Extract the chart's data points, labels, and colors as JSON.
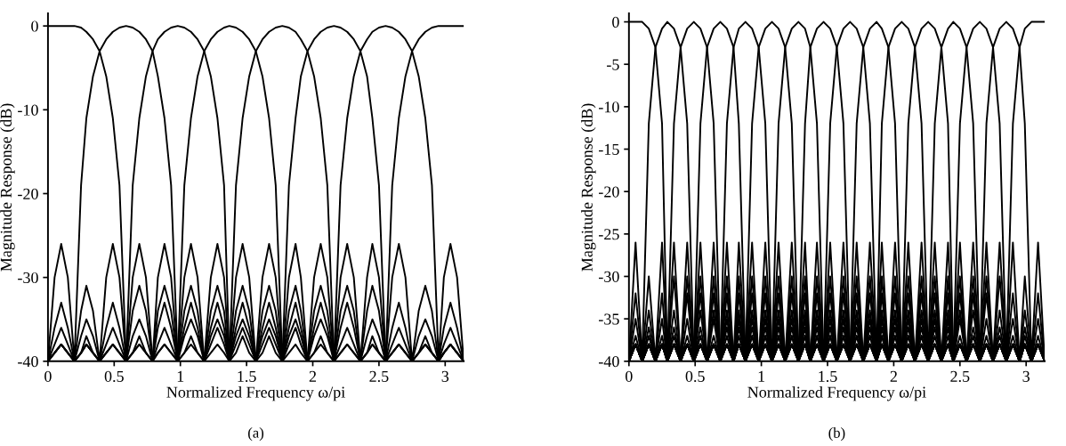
{
  "chart_data": [
    {
      "type": "line",
      "xlabel": "Normalized Frequency ω/pi",
      "ylabel": "Magnitude Response (dB)",
      "annotations": [
        "(a)"
      ],
      "xlim": [
        0,
        3.14
      ],
      "ylim": [
        -40,
        1.5
      ],
      "xticks": [
        0,
        0.5,
        1,
        1.5,
        2,
        2.5,
        3
      ],
      "yticks": [
        0,
        -10,
        -20,
        -30,
        -40
      ],
      "x": [
        0,
        0.05,
        0.1,
        0.15,
        0.2,
        0.25,
        0.29,
        0.34,
        0.39,
        0.44,
        0.49,
        0.54,
        0.59,
        0.64,
        0.69,
        0.74,
        0.79,
        0.83,
        0.88,
        0.93,
        0.98,
        1.03,
        1.08,
        1.13,
        1.18,
        1.23,
        1.28,
        1.33,
        1.37,
        1.42,
        1.47,
        1.52,
        1.57,
        1.62,
        1.67,
        1.72,
        1.77,
        1.82,
        1.87,
        1.91,
        1.96,
        2.01,
        2.06,
        2.11,
        2.16,
        2.21,
        2.26,
        2.31,
        2.36,
        2.41,
        2.45,
        2.5,
        2.55,
        2.6,
        2.65,
        2.7,
        2.75,
        2.8,
        2.85,
        2.9,
        2.95,
        2.99,
        3.04,
        3.09,
        3.14
      ],
      "series": [
        {
          "color": "#000000",
          "values": [
            0,
            0,
            0,
            0,
            0,
            -0.2,
            -0.7,
            -1.6,
            -3,
            -6,
            -11,
            -19,
            -40,
            -30,
            -26,
            -30,
            -40,
            -34,
            -31,
            -34,
            -40,
            -36,
            -33,
            -36,
            -40,
            -37,
            -35,
            -37,
            -40,
            -38,
            -36,
            -38,
            -40,
            -39,
            -37,
            -39,
            -40,
            -39,
            -38,
            -39,
            -40,
            -39,
            -38,
            -39,
            -40,
            -39,
            -38,
            -39,
            -40,
            -39,
            -38,
            -39,
            -40,
            -39,
            -38,
            -39,
            -40,
            -39,
            -38,
            -39,
            -40,
            -39,
            -38,
            -39,
            -40
          ]
        },
        {
          "color": "#000000",
          "values": [
            -40,
            -30,
            -26,
            -30,
            -40,
            -19,
            -11,
            -6,
            -3,
            -1.6,
            -0.7,
            -0.2,
            0,
            -0.2,
            -0.7,
            -1.6,
            -3,
            -6,
            -11,
            -19,
            -40,
            -30,
            -26,
            -30,
            -40,
            -34,
            -31,
            -34,
            -40,
            -36,
            -33,
            -36,
            -40,
            -37,
            -35,
            -37,
            -40,
            -38,
            -36,
            -38,
            -40,
            -39,
            -37,
            -39,
            -40,
            -39,
            -38,
            -39,
            -40,
            -39,
            -38,
            -39,
            -40,
            -39,
            -38,
            -39,
            -40,
            -39,
            -38,
            -39,
            -40,
            -39,
            -38,
            -39,
            -40
          ]
        },
        {
          "color": "#000000",
          "values": [
            -40,
            -36,
            -33,
            -36,
            -40,
            -34,
            -31,
            -34,
            -40,
            -30,
            -26,
            -30,
            -40,
            -19,
            -11,
            -6,
            -3,
            -1.6,
            -0.7,
            -0.2,
            0,
            -0.2,
            -0.7,
            -1.6,
            -3,
            -6,
            -11,
            -19,
            -40,
            -30,
            -26,
            -30,
            -40,
            -34,
            -31,
            -34,
            -40,
            -36,
            -33,
            -36,
            -40,
            -37,
            -35,
            -37,
            -40,
            -38,
            -36,
            -38,
            -40,
            -39,
            -37,
            -39,
            -40,
            -39,
            -38,
            -39,
            -40,
            -39,
            -38,
            -39,
            -40,
            -39,
            -38,
            -39,
            -40
          ]
        },
        {
          "color": "#000000",
          "values": [
            -40,
            -38,
            -36,
            -38,
            -40,
            -37,
            -35,
            -37,
            -40,
            -36,
            -33,
            -36,
            -40,
            -34,
            -31,
            -34,
            -40,
            -30,
            -26,
            -30,
            -40,
            -19,
            -11,
            -6,
            -3,
            -1.6,
            -0.7,
            -0.2,
            0,
            -0.2,
            -0.7,
            -1.6,
            -3,
            -6,
            -11,
            -19,
            -40,
            -30,
            -26,
            -30,
            -40,
            -34,
            -31,
            -34,
            -40,
            -36,
            -33,
            -36,
            -40,
            -37,
            -35,
            -37,
            -40,
            -38,
            -36,
            -38,
            -40,
            -39,
            -37,
            -39,
            -40,
            -39,
            -38,
            -39,
            -40
          ]
        },
        {
          "color": "#000000",
          "values": [
            -40,
            -39,
            -38,
            -39,
            -40,
            -39,
            -37,
            -39,
            -40,
            -38,
            -36,
            -38,
            -40,
            -37,
            -35,
            -37,
            -40,
            -36,
            -33,
            -36,
            -40,
            -34,
            -31,
            -34,
            -40,
            -30,
            -26,
            -30,
            -40,
            -19,
            -11,
            -6,
            -3,
            -1.6,
            -0.7,
            -0.2,
            0,
            -0.2,
            -0.7,
            -1.6,
            -3,
            -6,
            -11,
            -19,
            -40,
            -30,
            -26,
            -30,
            -40,
            -34,
            -31,
            -34,
            -40,
            -36,
            -33,
            -36,
            -40,
            -37,
            -35,
            -37,
            -40,
            -38,
            -36,
            -38,
            -40
          ]
        },
        {
          "color": "#000000",
          "values": [
            -40,
            -39,
            -38,
            -39,
            -40,
            -39,
            -38,
            -39,
            -40,
            -39,
            -38,
            -39,
            -40,
            -39,
            -37,
            -39,
            -40,
            -38,
            -36,
            -38,
            -40,
            -37,
            -35,
            -37,
            -40,
            -36,
            -33,
            -36,
            -40,
            -34,
            -31,
            -34,
            -40,
            -30,
            -26,
            -30,
            -40,
            -19,
            -11,
            -6,
            -3,
            -1.6,
            -0.7,
            -0.2,
            0,
            -0.2,
            -0.7,
            -1.6,
            -3,
            -6,
            -11,
            -19,
            -40,
            -30,
            -26,
            -30,
            -40,
            -34,
            -31,
            -34,
            -40,
            -36,
            -33,
            -36,
            -40
          ]
        },
        {
          "color": "#000000",
          "values": [
            -40,
            -39,
            -38,
            -39,
            -40,
            -39,
            -38,
            -39,
            -40,
            -39,
            -38,
            -39,
            -40,
            -39,
            -38,
            -39,
            -40,
            -39,
            -38,
            -39,
            -40,
            -39,
            -37,
            -39,
            -40,
            -38,
            -36,
            -38,
            -40,
            -37,
            -35,
            -37,
            -40,
            -36,
            -33,
            -36,
            -40,
            -34,
            -31,
            -34,
            -40,
            -30,
            -26,
            -30,
            -40,
            -19,
            -11,
            -6,
            -3,
            -1.6,
            -0.7,
            -0.2,
            0,
            -0.2,
            -0.7,
            -1.6,
            -3,
            -6,
            -11,
            -19,
            -40,
            -30,
            -26,
            -30,
            -40
          ]
        },
        {
          "color": "#000000",
          "values": [
            -40,
            -39,
            -38,
            -39,
            -40,
            -39,
            -38,
            -39,
            -40,
            -39,
            -38,
            -39,
            -40,
            -39,
            -38,
            -39,
            -40,
            -39,
            -38,
            -39,
            -40,
            -39,
            -38,
            -39,
            -40,
            -39,
            -38,
            -39,
            -40,
            -39,
            -37,
            -39,
            -40,
            -38,
            -36,
            -38,
            -40,
            -37,
            -35,
            -37,
            -40,
            -36,
            -33,
            -36,
            -40,
            -34,
            -31,
            -34,
            -40,
            -30,
            -26,
            -30,
            -40,
            -19,
            -11,
            -6,
            -3,
            -1.6,
            -0.7,
            -0.2,
            0,
            0,
            0,
            0,
            0
          ]
        }
      ]
    },
    {
      "type": "line",
      "xlabel": "Normalized Frequency ω/pi",
      "ylabel": "Magnitude Response (dB)",
      "annotations": [
        "(b)"
      ],
      "xlim": [
        0,
        3.14
      ],
      "ylim": [
        -40,
        1
      ],
      "xticks": [
        0,
        0.5,
        1,
        1.5,
        2,
        2.5,
        3
      ],
      "yticks": [
        0,
        -5,
        -10,
        -15,
        -20,
        -25,
        -30,
        -35,
        -40
      ],
      "x": [
        0,
        0.05,
        0.1,
        0.15,
        0.2,
        0.25,
        0.29,
        0.34,
        0.39,
        0.44,
        0.49,
        0.54,
        0.59,
        0.64,
        0.69,
        0.74,
        0.79,
        0.83,
        0.88,
        0.93,
        0.98,
        1.03,
        1.08,
        1.13,
        1.18,
        1.23,
        1.28,
        1.33,
        1.37,
        1.42,
        1.47,
        1.52,
        1.57,
        1.62,
        1.67,
        1.72,
        1.77,
        1.82,
        1.87,
        1.91,
        1.96,
        2.01,
        2.06,
        2.11,
        2.16,
        2.21,
        2.26,
        2.31,
        2.36,
        2.41,
        2.45,
        2.5,
        2.55,
        2.6,
        2.65,
        2.7,
        2.75,
        2.8,
        2.85,
        2.9,
        2.95,
        2.99,
        3.04,
        3.09,
        3.14
      ],
      "series": [
        {
          "color": "#000000",
          "values": [
            0,
            0,
            0,
            -0.8,
            -3,
            -12,
            -40,
            -26,
            -40,
            -30,
            -40,
            -32,
            -40,
            -34,
            -40,
            -35,
            -40,
            -36,
            -40,
            -37,
            -40,
            -37,
            -40,
            -38,
            -40,
            -38,
            -40,
            -38,
            -40,
            -38,
            -40,
            -38,
            -40,
            -38,
            -40,
            -38,
            -40,
            -38,
            -40,
            -38,
            -40,
            -38,
            -40,
            -38,
            -40,
            -38,
            -40,
            -38,
            -40,
            -38,
            -40,
            -38,
            -40,
            -38,
            -40,
            -38,
            -40,
            -38,
            -40,
            -38,
            -40,
            -38,
            -40,
            -38,
            -40
          ]
        },
        {
          "color": "#000000",
          "values": [
            -40,
            -26,
            -40,
            -12,
            -3,
            -0.8,
            0,
            -0.8,
            -3,
            -12,
            -40,
            -26,
            -40,
            -30,
            -40,
            -32,
            -40,
            -34,
            -40,
            -35,
            -40,
            -36,
            -40,
            -37,
            -40,
            -37,
            -40,
            -38,
            -40,
            -38,
            -40,
            -38,
            -40,
            -38,
            -40,
            -38,
            -40,
            -38,
            -40,
            -38,
            -40,
            -38,
            -40,
            -38,
            -40,
            -38,
            -40,
            -38,
            -40,
            -38,
            -40,
            -38,
            -40,
            -38,
            -40,
            -38,
            -40,
            -38,
            -40,
            -38,
            -40,
            -38,
            -40,
            -38,
            -40
          ]
        },
        {
          "color": "#000000",
          "values": [
            -40,
            -32,
            -40,
            -30,
            -40,
            -26,
            -40,
            -12,
            -3,
            -0.8,
            0,
            -0.8,
            -3,
            -12,
            -40,
            -26,
            -40,
            -30,
            -40,
            -32,
            -40,
            -34,
            -40,
            -35,
            -40,
            -36,
            -40,
            -37,
            -40,
            -37,
            -40,
            -38,
            -40,
            -38,
            -40,
            -38,
            -40,
            -38,
            -40,
            -38,
            -40,
            -38,
            -40,
            -38,
            -40,
            -38,
            -40,
            -38,
            -40,
            -38,
            -40,
            -38,
            -40,
            -38,
            -40,
            -38,
            -40,
            -38,
            -40,
            -38,
            -40,
            -38,
            -40,
            -38,
            -40
          ]
        },
        {
          "color": "#000000",
          "values": [
            -40,
            -35,
            -40,
            -34,
            -40,
            -32,
            -40,
            -30,
            -40,
            -26,
            -40,
            -12,
            -3,
            -0.8,
            0,
            -0.8,
            -3,
            -12,
            -40,
            -26,
            -40,
            -30,
            -40,
            -32,
            -40,
            -34,
            -40,
            -35,
            -40,
            -36,
            -40,
            -37,
            -40,
            -37,
            -40,
            -38,
            -40,
            -38,
            -40,
            -38,
            -40,
            -38,
            -40,
            -38,
            -40,
            -38,
            -40,
            -38,
            -40,
            -38,
            -40,
            -38,
            -40,
            -38,
            -40,
            -38,
            -40,
            -38,
            -40,
            -38,
            -40,
            -38,
            -40,
            -38,
            -40
          ]
        },
        {
          "color": "#000000",
          "values": [
            -40,
            -37,
            -40,
            -36,
            -40,
            -35,
            -40,
            -34,
            -40,
            -32,
            -40,
            -30,
            -40,
            -26,
            -40,
            -12,
            -3,
            -0.8,
            0,
            -0.8,
            -3,
            -12,
            -40,
            -26,
            -40,
            -30,
            -40,
            -32,
            -40,
            -34,
            -40,
            -35,
            -40,
            -36,
            -40,
            -37,
            -40,
            -37,
            -40,
            -38,
            -40,
            -38,
            -40,
            -38,
            -40,
            -38,
            -40,
            -38,
            -40,
            -38,
            -40,
            -38,
            -40,
            -38,
            -40,
            -38,
            -40,
            -38,
            -40,
            -38,
            -40,
            -38,
            -40,
            -38,
            -40
          ]
        },
        {
          "color": "#000000",
          "values": [
            -40,
            -38,
            -40,
            -37,
            -40,
            -37,
            -40,
            -36,
            -40,
            -35,
            -40,
            -34,
            -40,
            -32,
            -40,
            -30,
            -40,
            -26,
            -40,
            -12,
            -3,
            -0.8,
            0,
            -0.8,
            -3,
            -12,
            -40,
            -26,
            -40,
            -30,
            -40,
            -32,
            -40,
            -34,
            -40,
            -35,
            -40,
            -36,
            -40,
            -37,
            -40,
            -37,
            -40,
            -38,
            -40,
            -38,
            -40,
            -38,
            -40,
            -38,
            -40,
            -38,
            -40,
            -38,
            -40,
            -38,
            -40,
            -38,
            -40,
            -38,
            -40,
            -38,
            -40,
            -38,
            -40
          ]
        },
        {
          "color": "#000000",
          "values": [
            -40,
            -38,
            -40,
            -38,
            -40,
            -38,
            -40,
            -37,
            -40,
            -37,
            -40,
            -36,
            -40,
            -35,
            -40,
            -34,
            -40,
            -32,
            -40,
            -30,
            -40,
            -26,
            -40,
            -12,
            -3,
            -0.8,
            0,
            -0.8,
            -3,
            -12,
            -40,
            -26,
            -40,
            -30,
            -40,
            -32,
            -40,
            -34,
            -40,
            -35,
            -40,
            -36,
            -40,
            -37,
            -40,
            -37,
            -40,
            -38,
            -40,
            -38,
            -40,
            -38,
            -40,
            -38,
            -40,
            -38,
            -40,
            -38,
            -40,
            -38,
            -40,
            -38,
            -40,
            -38,
            -40
          ]
        },
        {
          "color": "#000000",
          "values": [
            -40,
            -38,
            -40,
            -38,
            -40,
            -38,
            -40,
            -38,
            -40,
            -38,
            -40,
            -37,
            -40,
            -37,
            -40,
            -36,
            -40,
            -35,
            -40,
            -34,
            -40,
            -32,
            -40,
            -30,
            -40,
            -26,
            -40,
            -12,
            -3,
            -0.8,
            0,
            -0.8,
            -3,
            -12,
            -40,
            -26,
            -40,
            -30,
            -40,
            -32,
            -40,
            -34,
            -40,
            -35,
            -40,
            -36,
            -40,
            -37,
            -40,
            -37,
            -40,
            -38,
            -40,
            -38,
            -40,
            -38,
            -40,
            -38,
            -40,
            -38,
            -40,
            -38,
            -40,
            -38,
            -40
          ]
        },
        {
          "color": "#000000",
          "values": [
            -40,
            -38,
            -40,
            -38,
            -40,
            -38,
            -40,
            -38,
            -40,
            -38,
            -40,
            -38,
            -40,
            -38,
            -40,
            -37,
            -40,
            -37,
            -40,
            -36,
            -40,
            -35,
            -40,
            -34,
            -40,
            -32,
            -40,
            -30,
            -40,
            -26,
            -40,
            -12,
            -3,
            -0.8,
            0,
            -0.8,
            -3,
            -12,
            -40,
            -26,
            -40,
            -30,
            -40,
            -32,
            -40,
            -34,
            -40,
            -35,
            -40,
            -36,
            -40,
            -37,
            -40,
            -37,
            -40,
            -38,
            -40,
            -38,
            -40,
            -38,
            -40,
            -38,
            -40,
            -38,
            -40
          ]
        },
        {
          "color": "#000000",
          "values": [
            -40,
            -38,
            -40,
            -38,
            -40,
            -38,
            -40,
            -38,
            -40,
            -38,
            -40,
            -38,
            -40,
            -38,
            -40,
            -38,
            -40,
            -38,
            -40,
            -37,
            -40,
            -37,
            -40,
            -36,
            -40,
            -35,
            -40,
            -34,
            -40,
            -32,
            -40,
            -30,
            -40,
            -26,
            -40,
            -12,
            -3,
            -0.8,
            0,
            -0.8,
            -3,
            -12,
            -40,
            -26,
            -40,
            -30,
            -40,
            -32,
            -40,
            -34,
            -40,
            -35,
            -40,
            -36,
            -40,
            -37,
            -40,
            -37,
            -40,
            -38,
            -40,
            -38,
            -40,
            -38,
            -40
          ]
        },
        {
          "color": "#000000",
          "values": [
            -40,
            -38,
            -40,
            -38,
            -40,
            -38,
            -40,
            -38,
            -40,
            -38,
            -40,
            -38,
            -40,
            -38,
            -40,
            -38,
            -40,
            -38,
            -40,
            -38,
            -40,
            -38,
            -40,
            -37,
            -40,
            -37,
            -40,
            -36,
            -40,
            -35,
            -40,
            -34,
            -40,
            -32,
            -40,
            -30,
            -40,
            -26,
            -40,
            -12,
            -3,
            -0.8,
            0,
            -0.8,
            -3,
            -12,
            -40,
            -26,
            -40,
            -30,
            -40,
            -32,
            -40,
            -34,
            -40,
            -35,
            -40,
            -36,
            -40,
            -37,
            -40,
            -37,
            -40,
            -38,
            -40
          ]
        },
        {
          "color": "#000000",
          "values": [
            -40,
            -38,
            -40,
            -38,
            -40,
            -38,
            -40,
            -38,
            -40,
            -38,
            -40,
            -38,
            -40,
            -38,
            -40,
            -38,
            -40,
            -38,
            -40,
            -38,
            -40,
            -38,
            -40,
            -38,
            -40,
            -38,
            -40,
            -37,
            -40,
            -37,
            -40,
            -36,
            -40,
            -35,
            -40,
            -34,
            -40,
            -32,
            -40,
            -30,
            -40,
            -26,
            -40,
            -12,
            -3,
            -0.8,
            0,
            -0.8,
            -3,
            -12,
            -40,
            -26,
            -40,
            -30,
            -40,
            -32,
            -40,
            -34,
            -40,
            -35,
            -40,
            -36,
            -40,
            -37,
            -40
          ]
        },
        {
          "color": "#000000",
          "values": [
            -40,
            -38,
            -40,
            -38,
            -40,
            -38,
            -40,
            -38,
            -40,
            -38,
            -40,
            -38,
            -40,
            -38,
            -40,
            -38,
            -40,
            -38,
            -40,
            -38,
            -40,
            -38,
            -40,
            -38,
            -40,
            -38,
            -40,
            -38,
            -40,
            -38,
            -40,
            -37,
            -40,
            -37,
            -40,
            -36,
            -40,
            -35,
            -40,
            -34,
            -40,
            -32,
            -40,
            -30,
            -40,
            -26,
            -40,
            -12,
            -3,
            -0.8,
            0,
            -0.8,
            -3,
            -12,
            -40,
            -26,
            -40,
            -30,
            -40,
            -32,
            -40,
            -34,
            -40,
            -35,
            -40
          ]
        },
        {
          "color": "#000000",
          "values": [
            -40,
            -38,
            -40,
            -38,
            -40,
            -38,
            -40,
            -38,
            -40,
            -38,
            -40,
            -38,
            -40,
            -38,
            -40,
            -38,
            -40,
            -38,
            -40,
            -38,
            -40,
            -38,
            -40,
            -38,
            -40,
            -38,
            -40,
            -38,
            -40,
            -38,
            -40,
            -38,
            -40,
            -38,
            -40,
            -37,
            -40,
            -37,
            -40,
            -36,
            -40,
            -35,
            -40,
            -34,
            -40,
            -32,
            -40,
            -30,
            -40,
            -26,
            -40,
            -12,
            -3,
            -0.8,
            0,
            -0.8,
            -3,
            -12,
            -40,
            -26,
            -40,
            -30,
            -40,
            -32,
            -40
          ]
        },
        {
          "color": "#000000",
          "values": [
            -40,
            -38,
            -40,
            -38,
            -40,
            -38,
            -40,
            -38,
            -40,
            -38,
            -40,
            -38,
            -40,
            -38,
            -40,
            -38,
            -40,
            -38,
            -40,
            -38,
            -40,
            -38,
            -40,
            -38,
            -40,
            -38,
            -40,
            -38,
            -40,
            -38,
            -40,
            -38,
            -40,
            -38,
            -40,
            -38,
            -40,
            -38,
            -40,
            -37,
            -40,
            -37,
            -40,
            -36,
            -40,
            -35,
            -40,
            -34,
            -40,
            -32,
            -40,
            -30,
            -40,
            -26,
            -40,
            -12,
            -3,
            -0.8,
            0,
            -0.8,
            -3,
            -12,
            -40,
            -26,
            -40
          ]
        },
        {
          "color": "#000000",
          "values": [
            -40,
            -38,
            -40,
            -38,
            -40,
            -38,
            -40,
            -38,
            -40,
            -38,
            -40,
            -38,
            -40,
            -38,
            -40,
            -38,
            -40,
            -38,
            -40,
            -38,
            -40,
            -38,
            -40,
            -38,
            -40,
            -38,
            -40,
            -38,
            -40,
            -38,
            -40,
            -38,
            -40,
            -38,
            -40,
            -38,
            -40,
            -38,
            -40,
            -38,
            -40,
            -38,
            -40,
            -37,
            -40,
            -37,
            -40,
            -36,
            -40,
            -35,
            -40,
            -34,
            -40,
            -32,
            -40,
            -30,
            -40,
            -26,
            -40,
            -12,
            -3,
            -0.8,
            0,
            0,
            0
          ]
        }
      ]
    }
  ]
}
